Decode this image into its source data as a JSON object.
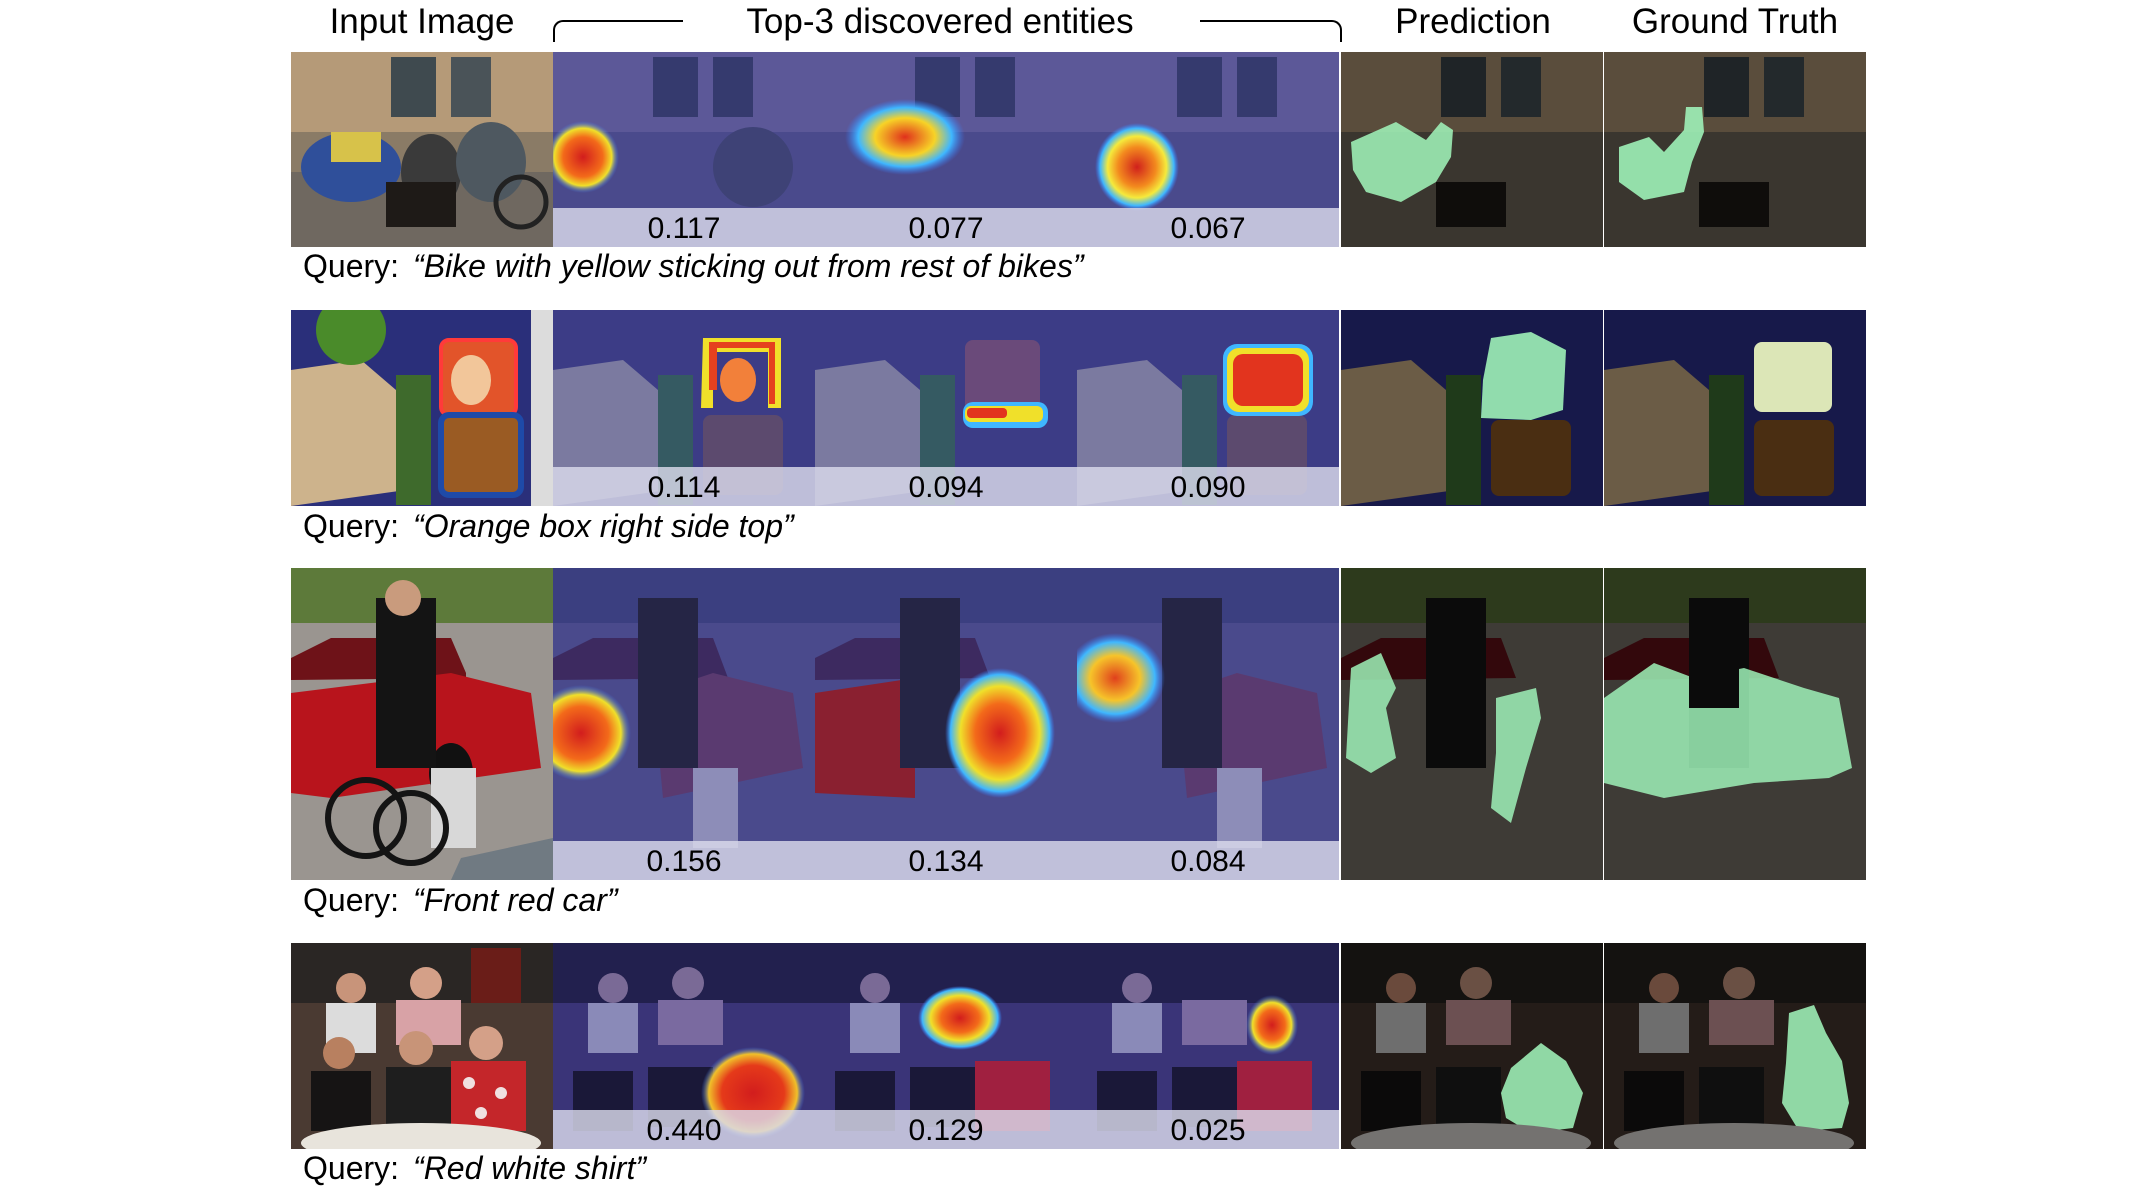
{
  "headers": {
    "input_image": "Input Image",
    "entities": "Top-3 discovered entities",
    "prediction": "Prediction",
    "ground_truth": "Ground Truth"
  },
  "query_label": "Query:",
  "rows": [
    {
      "query": "“Bike with yellow sticking out from rest of bikes”",
      "scores": [
        "0.117",
        "0.077",
        "0.067"
      ]
    },
    {
      "query": "“Orange box right side top”",
      "scores": [
        "0.114",
        "0.094",
        "0.090"
      ]
    },
    {
      "query": "“Front red car”",
      "scores": [
        "0.156",
        "0.134",
        "0.084"
      ]
    },
    {
      "query": "“Red white shirt”",
      "scores": [
        "0.440",
        "0.129",
        "0.025"
      ]
    }
  ],
  "colors": {
    "heatmap_overlay": "#2a2a9a",
    "mask_green": "#9ff2b8",
    "score_band": "#dadaec"
  }
}
